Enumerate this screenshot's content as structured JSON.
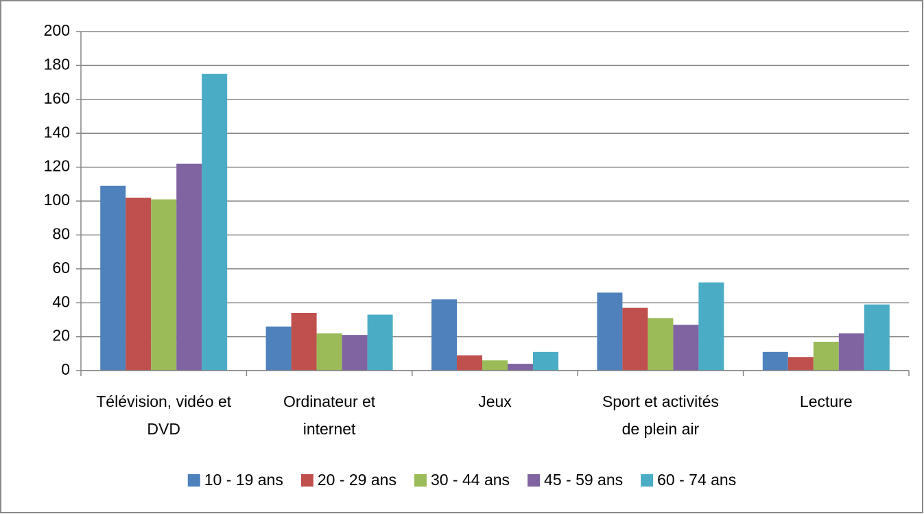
{
  "chart_data": {
    "type": "bar",
    "categories": [
      "Télévision, vidéo et DVD",
      "Ordinateur et internet",
      "Jeux",
      "Sport et activités de plein air",
      "Lecture"
    ],
    "series": [
      {
        "name": "10 - 19 ans",
        "color": "#4f81bd",
        "values": [
          109,
          26,
          42,
          46,
          11
        ]
      },
      {
        "name": "20 - 29 ans",
        "color": "#c0504d",
        "values": [
          102,
          34,
          9,
          37,
          8
        ]
      },
      {
        "name": "30 - 44 ans",
        "color": "#9bbb59",
        "values": [
          101,
          22,
          6,
          31,
          17
        ]
      },
      {
        "name": "45 - 59 ans",
        "color": "#8064a2",
        "values": [
          122,
          21,
          4,
          27,
          22
        ]
      },
      {
        "name": "60 - 74 ans",
        "color": "#4bacc6",
        "values": [
          175,
          33,
          11,
          52,
          39
        ]
      }
    ],
    "ylim": [
      0,
      200
    ],
    "yticks": [
      0,
      20,
      40,
      60,
      80,
      100,
      120,
      140,
      160,
      180,
      200
    ],
    "grid": true,
    "legend": "bottom"
  }
}
